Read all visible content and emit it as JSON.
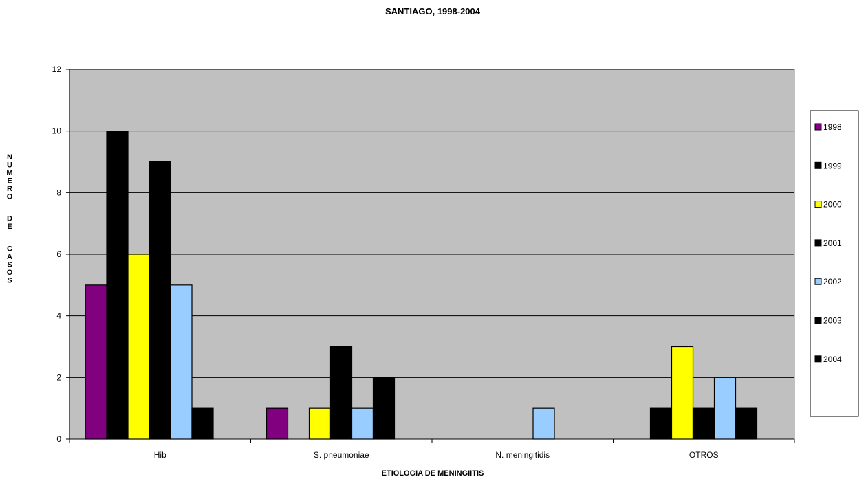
{
  "chart_data": {
    "type": "bar",
    "title": "SANTIAGO, 1998-2004",
    "xlabel": "ETIOLOGIA DE MENINGIITIS",
    "ylabel": "NUMERO DE CASOS",
    "ylim": [
      0,
      12
    ],
    "yticks": [
      "0",
      "2",
      "4",
      "6",
      "8",
      "10",
      "12"
    ],
    "grid": true,
    "legend_position": "right",
    "categories": [
      "Hib",
      "S. pneumoniae",
      "N. meningitidis",
      "OTROS"
    ],
    "series": [
      {
        "name": "1998",
        "color": "#800080",
        "values": [
          5,
          1,
          0,
          0
        ]
      },
      {
        "name": "1999",
        "color": "#000000",
        "values": [
          10,
          0,
          0,
          1
        ]
      },
      {
        "name": "2000",
        "color": "#ffff00",
        "values": [
          6,
          1,
          0,
          3
        ]
      },
      {
        "name": "2001",
        "color": "#000000",
        "values": [
          9,
          3,
          0,
          1
        ]
      },
      {
        "name": "2002",
        "color": "#99ccff",
        "values": [
          5,
          1,
          1,
          2
        ]
      },
      {
        "name": "2003",
        "color": "#000000",
        "values": [
          1,
          2,
          0,
          1
        ]
      },
      {
        "name": "2004",
        "color": "#000000",
        "values": [
          0,
          0,
          0,
          0
        ]
      }
    ],
    "plot_background": "#c0c0c0"
  }
}
